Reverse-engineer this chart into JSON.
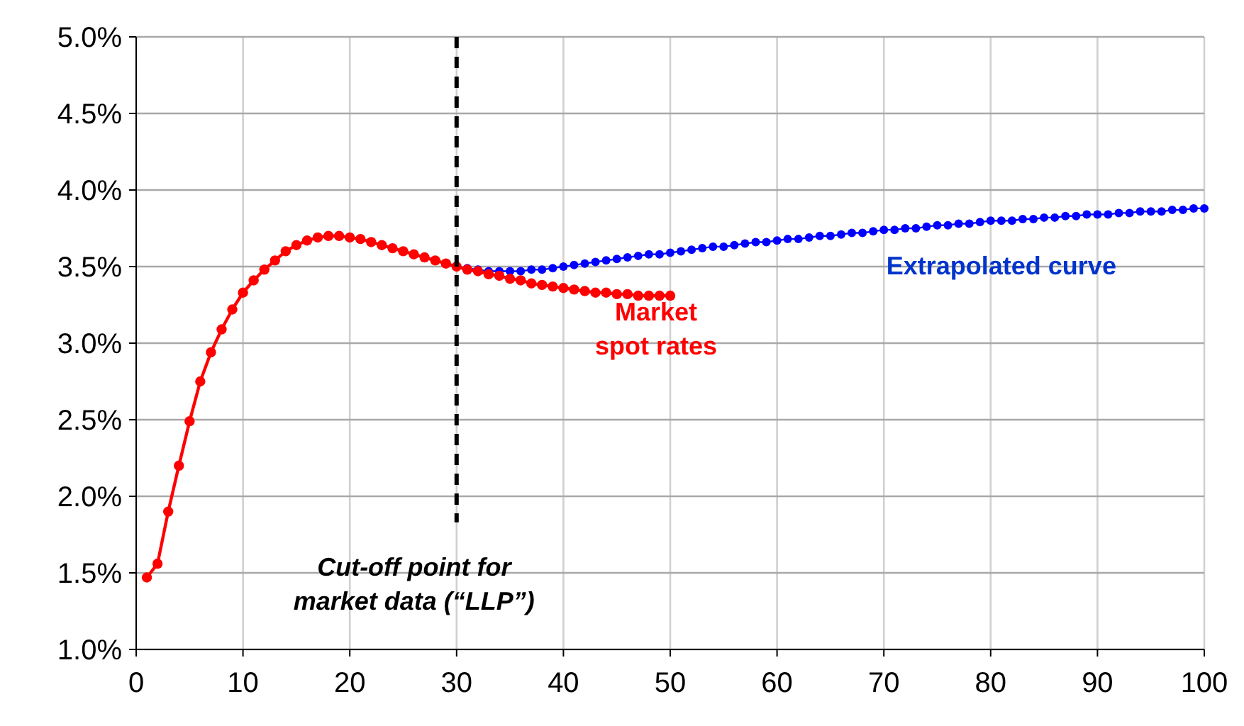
{
  "chart_data": {
    "type": "line",
    "xlim": [
      0,
      100
    ],
    "xticks": [
      0,
      10,
      20,
      30,
      40,
      50,
      60,
      70,
      80,
      90,
      100
    ],
    "ylim": [
      1,
      5
    ],
    "yticks": [
      {
        "value": 1,
        "label": "1.0%"
      },
      {
        "value": 1.5,
        "label": "1.5%"
      },
      {
        "value": 2,
        "label": "2.0%"
      },
      {
        "value": 2.5,
        "label": "2.5%"
      },
      {
        "value": 3,
        "label": "3.0%"
      },
      {
        "value": 3.5,
        "label": "3.5%"
      },
      {
        "value": 4,
        "label": "4.0%"
      },
      {
        "value": 4.5,
        "label": "4.5%"
      },
      {
        "value": 5,
        "label": "5.0%"
      }
    ],
    "grid": true,
    "marker": "circle",
    "line_style": "solid",
    "series": [
      {
        "name": "Extrapolated curve",
        "color": "#0000ff",
        "x": [
          31,
          32,
          33,
          34,
          35,
          36,
          37,
          38,
          39,
          40,
          41,
          42,
          43,
          44,
          45,
          46,
          47,
          48,
          49,
          50,
          51,
          52,
          53,
          54,
          55,
          56,
          57,
          58,
          59,
          60,
          61,
          62,
          63,
          64,
          65,
          66,
          67,
          68,
          69,
          70,
          71,
          72,
          73,
          74,
          75,
          76,
          77,
          78,
          79,
          80,
          81,
          82,
          83,
          84,
          85,
          86,
          87,
          88,
          89,
          90,
          91,
          92,
          93,
          94,
          95,
          96,
          97,
          98,
          99,
          100
        ],
        "values": [
          3.49,
          3.48,
          3.47,
          3.47,
          3.47,
          3.47,
          3.48,
          3.48,
          3.49,
          3.5,
          3.51,
          3.52,
          3.53,
          3.54,
          3.55,
          3.56,
          3.57,
          3.58,
          3.58,
          3.59,
          3.6,
          3.61,
          3.62,
          3.63,
          3.63,
          3.64,
          3.65,
          3.66,
          3.66,
          3.67,
          3.68,
          3.68,
          3.69,
          3.7,
          3.7,
          3.71,
          3.72,
          3.72,
          3.73,
          3.74,
          3.74,
          3.75,
          3.75,
          3.76,
          3.77,
          3.77,
          3.78,
          3.78,
          3.79,
          3.8,
          3.8,
          3.8,
          3.81,
          3.81,
          3.82,
          3.82,
          3.83,
          3.83,
          3.84,
          3.84,
          3.84,
          3.85,
          3.85,
          3.86,
          3.86,
          3.86,
          3.87,
          3.87,
          3.88,
          3.88
        ]
      },
      {
        "name": "Market spot rates",
        "color": "#ff0000",
        "x": [
          1,
          2,
          3,
          4,
          5,
          6,
          7,
          8,
          9,
          10,
          11,
          12,
          13,
          14,
          15,
          16,
          17,
          18,
          19,
          20,
          21,
          22,
          23,
          24,
          25,
          26,
          27,
          28,
          29,
          30,
          31,
          32,
          33,
          34,
          35,
          36,
          37,
          38,
          39,
          40,
          41,
          42,
          43,
          44,
          45,
          46,
          47,
          48,
          49,
          50
        ],
        "values": [
          1.47,
          1.56,
          1.9,
          2.2,
          2.49,
          2.75,
          2.94,
          3.09,
          3.22,
          3.33,
          3.41,
          3.48,
          3.54,
          3.6,
          3.64,
          3.67,
          3.69,
          3.7,
          3.7,
          3.69,
          3.68,
          3.66,
          3.64,
          3.62,
          3.6,
          3.58,
          3.56,
          3.54,
          3.52,
          3.5,
          3.48,
          3.47,
          3.45,
          3.44,
          3.42,
          3.41,
          3.39,
          3.38,
          3.37,
          3.36,
          3.35,
          3.34,
          3.33,
          3.33,
          3.32,
          3.32,
          3.31,
          3.31,
          3.31,
          3.31
        ]
      }
    ],
    "ref_lines": [
      {
        "axis": "x",
        "value": 30,
        "label": "Cut-off point for market data (“LLP”)",
        "color": "#000000",
        "line_style": "dashed"
      }
    ]
  }
}
